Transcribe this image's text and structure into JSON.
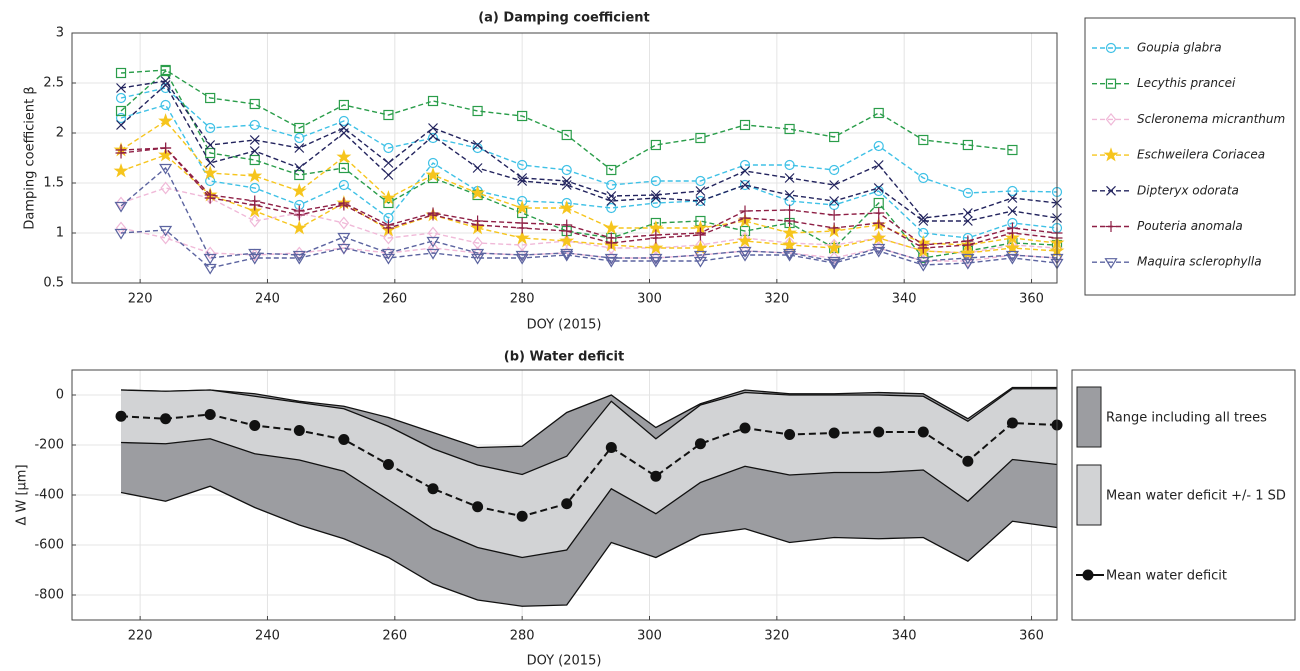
{
  "chart_data": [
    {
      "type": "line",
      "title": "(a) Damping coefficient",
      "xlabel": "DOY (2015)",
      "ylabel": "Damping coefficient β",
      "x": [
        217,
        224,
        231,
        238,
        245,
        252,
        259,
        266,
        273,
        280,
        287,
        294,
        301,
        308,
        315,
        322,
        329,
        336,
        343,
        350,
        357,
        364
      ],
      "xlim": [
        209.3,
        364
      ],
      "xticks": [
        220,
        240,
        260,
        280,
        300,
        320,
        340,
        360
      ],
      "ylim": [
        0.5,
        3
      ],
      "yticks": [
        0.5,
        1,
        1.5,
        2,
        2.5,
        3
      ],
      "grid": true,
      "series": [
        {
          "name": "Goupia glabra",
          "color": "#3fc1e6",
          "marker": "circle",
          "lines": [
            [
              2.35,
              2.45,
              2.05,
              2.08,
              1.95,
              2.12,
              1.85,
              1.95,
              1.85,
              1.68,
              1.63,
              1.48,
              1.52,
              1.52,
              1.68,
              1.68,
              1.63,
              1.87,
              1.55,
              1.4,
              1.42,
              1.41
            ],
            [
              2.15,
              2.28,
              1.52,
              1.45,
              1.28,
              1.48,
              1.15,
              1.7,
              1.42,
              1.32,
              1.3,
              1.25,
              1.3,
              1.32,
              1.48,
              1.32,
              1.28,
              1.42,
              1.0,
              0.95,
              1.1,
              1.05
            ]
          ]
        },
        {
          "name": "Lecythis prancei",
          "color": "#2a9d4a",
          "marker": "square",
          "lines": [
            [
              2.6,
              2.63,
              2.35,
              2.29,
              2.05,
              2.28,
              2.18,
              2.32,
              2.22,
              2.17,
              1.98,
              1.63,
              1.88,
              1.95,
              2.08,
              2.04,
              1.96,
              2.2,
              1.93,
              1.88,
              1.83,
              null
            ],
            [
              2.22,
              2.62,
              1.8,
              1.73,
              1.58,
              1.65,
              1.3,
              1.55,
              1.38,
              1.2,
              1.02,
              0.95,
              1.1,
              1.12,
              1.02,
              1.1,
              0.85,
              1.3,
              0.75,
              0.82,
              0.9,
              0.88
            ]
          ]
        },
        {
          "name": "Scleronema micranthum",
          "color": "#f0b9d8",
          "marker": "diamond",
          "lines": [
            [
              1.3,
              1.45,
              1.35,
              1.12,
              1.2,
              1.1,
              0.95,
              1.0,
              0.9,
              0.88,
              0.92,
              0.85,
              0.85,
              0.88,
              0.95,
              0.9,
              0.88,
              0.95,
              0.82,
              0.8,
              0.88,
              0.85
            ],
            [
              1.05,
              0.95,
              0.8,
              0.78,
              0.8,
              0.85,
              0.8,
              0.85,
              0.8,
              0.78,
              0.8,
              0.75,
              0.75,
              0.78,
              0.82,
              0.8,
              0.75,
              0.85,
              0.72,
              0.72,
              0.78,
              0.75
            ]
          ]
        },
        {
          "name": "Eschweilera Coriacea",
          "color": "#f6c51d",
          "marker": "star",
          "lines": [
            [
              1.83,
              2.12,
              1.6,
              1.57,
              1.42,
              1.76,
              1.35,
              1.58,
              1.4,
              1.25,
              1.25,
              1.05,
              1.05,
              1.05,
              1.12,
              1.0,
              1.02,
              1.08,
              0.9,
              0.88,
              0.95,
              0.9
            ],
            [
              1.62,
              1.78,
              1.38,
              1.22,
              1.05,
              1.3,
              1.03,
              1.18,
              1.05,
              0.95,
              0.92,
              0.88,
              0.85,
              0.85,
              0.92,
              0.88,
              0.85,
              0.95,
              0.82,
              0.8,
              0.85,
              0.82
            ]
          ]
        },
        {
          "name": "Dipteryx odorata",
          "color": "#23245e",
          "marker": "x",
          "lines": [
            [
              2.45,
              2.52,
              1.88,
              1.93,
              1.85,
              2.05,
              1.7,
              2.05,
              1.88,
              1.55,
              1.52,
              1.37,
              1.38,
              1.42,
              1.62,
              1.55,
              1.48,
              1.68,
              1.15,
              1.2,
              1.35,
              1.3
            ],
            [
              2.08,
              2.48,
              1.7,
              1.82,
              1.65,
              2.0,
              1.58,
              1.97,
              1.65,
              1.52,
              1.48,
              1.32,
              1.35,
              1.32,
              1.48,
              1.38,
              1.32,
              1.45,
              1.12,
              1.12,
              1.22,
              1.15
            ]
          ]
        },
        {
          "name": "Pouteria anomala",
          "color": "#8e1f45",
          "marker": "plus",
          "lines": [
            [
              1.83,
              1.85,
              1.38,
              1.32,
              1.22,
              1.3,
              1.08,
              1.2,
              1.12,
              1.1,
              1.08,
              0.95,
              0.98,
              1.0,
              1.22,
              1.23,
              1.18,
              1.2,
              0.88,
              0.92,
              1.05,
              1.0
            ],
            [
              1.8,
              1.85,
              1.35,
              1.28,
              1.18,
              1.28,
              1.05,
              1.18,
              1.08,
              1.05,
              1.02,
              0.9,
              0.95,
              0.98,
              1.15,
              1.12,
              1.05,
              1.1,
              0.85,
              0.88,
              1.0,
              0.95
            ]
          ]
        },
        {
          "name": "Maquira sclerophylla",
          "color": "#5c64a0",
          "marker": "triangle-down",
          "lines": [
            [
              1.27,
              1.65,
              0.75,
              0.8,
              0.78,
              0.96,
              0.8,
              0.92,
              0.8,
              0.78,
              0.8,
              0.75,
              0.75,
              0.78,
              0.82,
              0.8,
              0.72,
              0.85,
              0.72,
              0.75,
              0.78,
              0.75
            ],
            [
              1.0,
              1.03,
              0.65,
              0.75,
              0.75,
              0.85,
              0.75,
              0.8,
              0.75,
              0.75,
              0.78,
              0.72,
              0.72,
              0.72,
              0.78,
              0.78,
              0.7,
              0.82,
              0.68,
              0.7,
              0.75,
              0.7
            ]
          ]
        }
      ]
    },
    {
      "type": "area",
      "title": "(b) Water deficit",
      "xlabel": "DOY (2015)",
      "ylabel": "Δ W [µm]",
      "x": [
        217,
        224,
        231,
        238,
        245,
        252,
        259,
        266,
        273,
        280,
        287,
        294,
        301,
        308,
        315,
        322,
        329,
        336,
        343,
        350,
        357,
        364
      ],
      "xlim": [
        209.3,
        364
      ],
      "xticks": [
        220,
        240,
        260,
        280,
        300,
        320,
        340,
        360
      ],
      "ylim": [
        -900,
        100
      ],
      "yticks": [
        -800,
        -600,
        -400,
        -200,
        0
      ],
      "grid": true,
      "series": [
        {
          "name": "Range including all trees",
          "color": "#9c9da1",
          "upper": [
            20,
            15,
            20,
            5,
            -25,
            -45,
            -90,
            -150,
            -210,
            -205,
            -70,
            0,
            -130,
            -35,
            20,
            5,
            5,
            10,
            5,
            -95,
            30,
            30
          ],
          "lower": [
            -390,
            -425,
            -365,
            -450,
            -520,
            -575,
            -650,
            -755,
            -820,
            -845,
            -840,
            -590,
            -650,
            -560,
            -535,
            -590,
            -570,
            -575,
            -570,
            -665,
            -505,
            -530
          ]
        },
        {
          "name": "Mean water deficit +/- 1 SD",
          "color": "#d2d3d5",
          "upper": [
            20,
            15,
            20,
            -5,
            -30,
            -55,
            -125,
            -215,
            -280,
            -318,
            -245,
            -25,
            -175,
            -40,
            10,
            0,
            0,
            0,
            -5,
            -105,
            25,
            25
          ],
          "lower": [
            -190,
            -195,
            -175,
            -235,
            -260,
            -305,
            -420,
            -535,
            -610,
            -650,
            -620,
            -375,
            -475,
            -350,
            -285,
            -320,
            -310,
            -310,
            -300,
            -425,
            -258,
            -278
          ]
        },
        {
          "name": "Mean water deficit",
          "color": "#111111",
          "values": [
            -85,
            -95,
            -78,
            -122,
            -142,
            -178,
            -278,
            -375,
            -447,
            -485,
            -435,
            -210,
            -325,
            -195,
            -132,
            -158,
            -152,
            -148,
            -148,
            -265,
            -112,
            -120
          ]
        }
      ]
    }
  ]
}
